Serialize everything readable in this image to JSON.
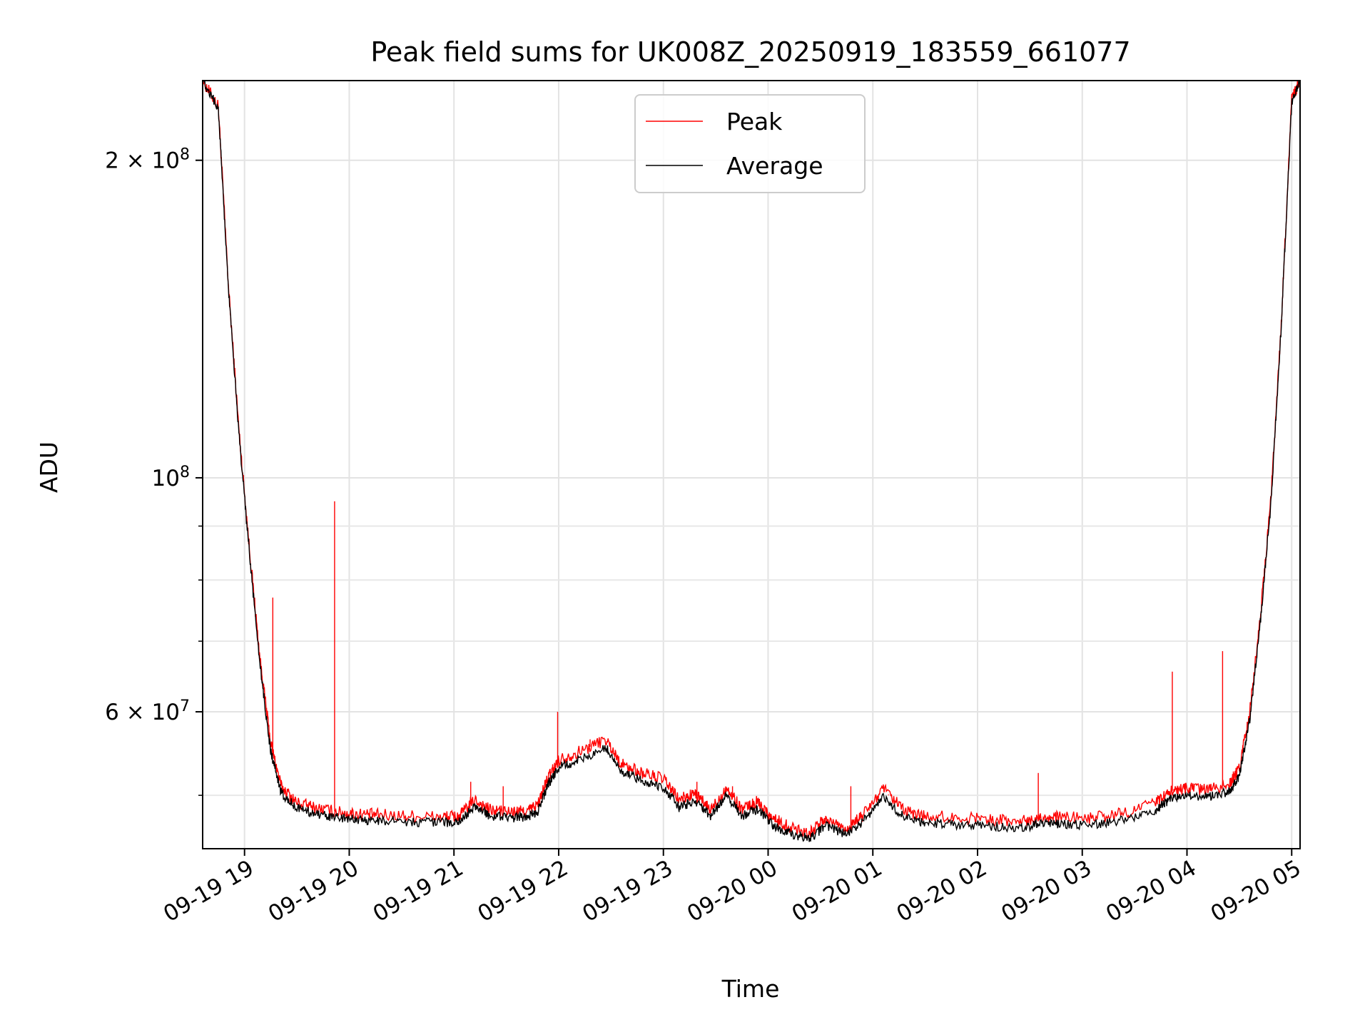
{
  "chart_data": {
    "type": "line",
    "title": "Peak field sums for UK008Z_20250919_183559_661077",
    "xlabel": "Time",
    "ylabel": "ADU",
    "y_scale": "log",
    "ylim": [
      44500000,
      238000000
    ],
    "x_range_hours": [
      18.6,
      29.08
    ],
    "x_ticks": [
      {
        "hour": 19,
        "label": "09-19 19"
      },
      {
        "hour": 20,
        "label": "09-19 20"
      },
      {
        "hour": 21,
        "label": "09-19 21"
      },
      {
        "hour": 22,
        "label": "09-19 22"
      },
      {
        "hour": 23,
        "label": "09-19 23"
      },
      {
        "hour": 24,
        "label": "09-20 00"
      },
      {
        "hour": 25,
        "label": "09-20 01"
      },
      {
        "hour": 26,
        "label": "09-20 02"
      },
      {
        "hour": 27,
        "label": "09-20 03"
      },
      {
        "hour": 28,
        "label": "09-20 04"
      },
      {
        "hour": 29,
        "label": "09-20 05"
      }
    ],
    "y_ticks": [
      {
        "value": 200000000,
        "mantissa": "2 × 10",
        "exponent": "8"
      },
      {
        "value": 100000000,
        "mantissa": "10",
        "exponent": "8"
      },
      {
        "value": 60000000,
        "mantissa": "6 × 10",
        "exponent": "7"
      }
    ],
    "y_minor_grid": [
      50000000,
      70000000,
      80000000,
      90000000
    ],
    "grid": true,
    "legend": {
      "placement": "top-center",
      "entries": [
        {
          "label": "Peak",
          "color": "#ff0000"
        },
        {
          "label": "Average",
          "color": "#000000"
        }
      ]
    },
    "series": [
      {
        "name": "Peak",
        "color": "#ff0000",
        "x": [
          18.6,
          18.75,
          18.85,
          18.95,
          19.05,
          19.15,
          19.25,
          19.35,
          19.5,
          19.7,
          19.9,
          20.1,
          20.3,
          20.6,
          20.9,
          21.05,
          21.2,
          21.35,
          21.55,
          21.7,
          21.8,
          21.9,
          22.0,
          22.2,
          22.45,
          22.6,
          22.8,
          23.0,
          23.15,
          23.3,
          23.45,
          23.6,
          23.75,
          23.9,
          24.05,
          24.2,
          24.4,
          24.55,
          24.75,
          24.9,
          25.1,
          25.3,
          25.5,
          25.8,
          26.1,
          26.4,
          26.6,
          26.8,
          27.1,
          27.4,
          27.7,
          27.85,
          28.0,
          28.2,
          28.4,
          28.5,
          28.6,
          28.7,
          28.8,
          28.9,
          29.0,
          29.08
        ],
        "y": [
          238000000,
          225000000,
          150000000,
          110000000,
          85000000,
          67000000,
          56000000,
          51000000,
          49200000,
          48600000,
          48200000,
          48000000,
          47900000,
          47800000,
          47700000,
          47800000,
          49500000,
          48400000,
          48200000,
          48300000,
          49000000,
          52000000,
          54000000,
          55000000,
          56500000,
          53500000,
          52500000,
          51800000,
          49500000,
          50200000,
          48400000,
          50800000,
          48500000,
          49300000,
          47500000,
          46700000,
          46100000,
          47500000,
          46500000,
          47800000,
          50700000,
          48300000,
          47800000,
          47600000,
          47500000,
          47200000,
          47700000,
          47600000,
          47600000,
          48100000,
          49200000,
          50500000,
          50700000,
          50600000,
          51200000,
          53000000,
          60000000,
          74000000,
          95000000,
          140000000,
          228000000,
          238000000
        ]
      },
      {
        "name": "Average",
        "color": "#000000",
        "x": [
          18.6,
          18.75,
          18.85,
          18.95,
          19.05,
          19.15,
          19.25,
          19.35,
          19.5,
          19.7,
          19.9,
          20.1,
          20.3,
          20.6,
          20.9,
          21.05,
          21.2,
          21.35,
          21.55,
          21.7,
          21.8,
          21.9,
          22.0,
          22.2,
          22.45,
          22.6,
          22.8,
          23.0,
          23.15,
          23.3,
          23.45,
          23.6,
          23.75,
          23.9,
          24.05,
          24.2,
          24.4,
          24.55,
          24.75,
          24.9,
          25.1,
          25.3,
          25.5,
          25.8,
          26.1,
          26.4,
          26.6,
          26.8,
          27.1,
          27.4,
          27.7,
          27.85,
          28.0,
          28.2,
          28.4,
          28.5,
          28.6,
          28.7,
          28.8,
          28.9,
          29.0,
          29.08
        ],
        "y": [
          238000000,
          224000000,
          149000000,
          109000000,
          84000000,
          66000000,
          55000000,
          50300000,
          48600000,
          48000000,
          47600000,
          47400000,
          47300000,
          47200000,
          47100000,
          47200000,
          48800000,
          47800000,
          47600000,
          47700000,
          48300000,
          51200000,
          53100000,
          54000000,
          55500000,
          52600000,
          51600000,
          50900000,
          48700000,
          49400000,
          47700000,
          50000000,
          47800000,
          48500000,
          46800000,
          46000000,
          45500000,
          46800000,
          45900000,
          47100000,
          49900000,
          47600000,
          47100000,
          46900000,
          46800000,
          46500000,
          47000000,
          46900000,
          46900000,
          47400000,
          48400000,
          49700000,
          49900000,
          49800000,
          50400000,
          52100000,
          59000000,
          73000000,
          94000000,
          139000000,
          227000000,
          238000000
        ]
      }
    ],
    "spikes": [
      {
        "hour": 19.86,
        "value": 95000000
      },
      {
        "hour": 19.27,
        "value": 77000000
      },
      {
        "hour": 21.16,
        "value": 51500000
      },
      {
        "hour": 21.47,
        "value": 51000000
      },
      {
        "hour": 21.99,
        "value": 60000000
      },
      {
        "hour": 22.3,
        "value": 56500000
      },
      {
        "hour": 23.32,
        "value": 51500000
      },
      {
        "hour": 23.66,
        "value": 51000000
      },
      {
        "hour": 24.79,
        "value": 51000000
      },
      {
        "hour": 25.15,
        "value": 50000000
      },
      {
        "hour": 26.58,
        "value": 52500000
      },
      {
        "hour": 27.86,
        "value": 65500000
      },
      {
        "hour": 28.34,
        "value": 68500000
      }
    ]
  }
}
